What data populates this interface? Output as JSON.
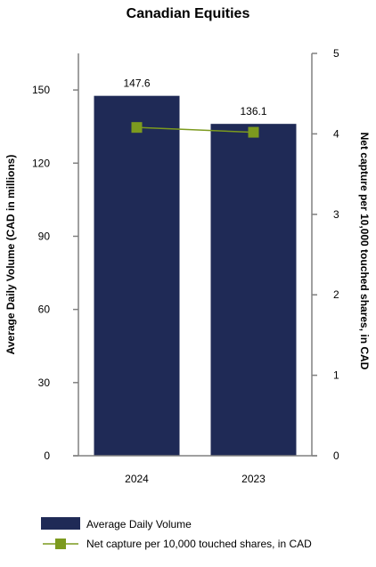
{
  "chart_data": {
    "type": "bar",
    "title": "Canadian Equities",
    "categories": [
      "2024",
      "2023"
    ],
    "y_left": {
      "label": "Average Daily Volume (CAD in millions)",
      "range": [
        0,
        165
      ],
      "ticks": [
        0,
        30,
        60,
        90,
        120,
        150
      ]
    },
    "y_right": {
      "label": "Net capture per 10,000 touched shares, in CAD",
      "range": [
        0,
        5
      ],
      "ticks": [
        0,
        1,
        2,
        3,
        4,
        5
      ]
    },
    "series": [
      {
        "name": "Average Daily Volume",
        "type": "bar",
        "axis": "left",
        "values": [
          147.6,
          136.1
        ],
        "labels": [
          "147.6",
          "136.1"
        ],
        "color": "#1f2a56"
      },
      {
        "name": "Net capture per 10,000 touched shares, in CAD",
        "type": "line",
        "axis": "right",
        "values": [
          4.08,
          4.02
        ],
        "color": "#7c9a1e"
      }
    ],
    "grid": false,
    "legend_position": "bottom-left"
  }
}
